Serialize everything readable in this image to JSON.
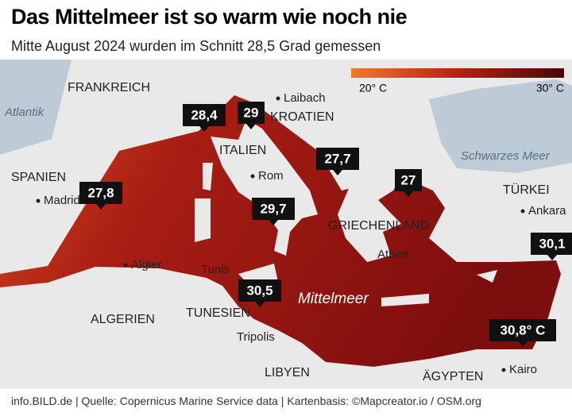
{
  "header": {
    "title": "Das Mittelmeer ist so warm wie noch nie",
    "subtitle": "Mitte August 2024 wurden im Schnitt 28,5 Grad gemessen"
  },
  "legend": {
    "low": "20° C",
    "high": "30° C"
  },
  "places": [
    "FRANKREICH",
    "Atlantik",
    "SPANIEN",
    "Madrid",
    "Laibach",
    "KROATIEN",
    "ITALIEN",
    "Rom",
    "GRIECHENLAND",
    "Athen",
    "Algier",
    "Tunis",
    "TUNESIEN",
    "ALGERIEN",
    "Tripolis",
    "Mittelmeer",
    "LIBYEN",
    "ÄGYPTEN",
    "Kairo",
    "TÜRKEI",
    "Ankara",
    "Schwarzes Meer"
  ],
  "callouts": [
    {
      "value": 28.4,
      "label": "28,4"
    },
    {
      "value": 29,
      "label": "29"
    },
    {
      "value": 27.8,
      "label": "27,8"
    },
    {
      "value": 29.7,
      "label": "29,7"
    },
    {
      "value": 27.7,
      "label": "27,7"
    },
    {
      "value": 27,
      "label": "27"
    },
    {
      "value": 30.1,
      "label": "30,1"
    },
    {
      "value": 30.5,
      "label": "30,5"
    },
    {
      "value": 30.8,
      "label": "30,8° C"
    }
  ],
  "footer": "info.BILD.de | Quelle: Copernicus Marine Service data | Kartenbasis: ©Mapcreator.io / OSM.org"
}
